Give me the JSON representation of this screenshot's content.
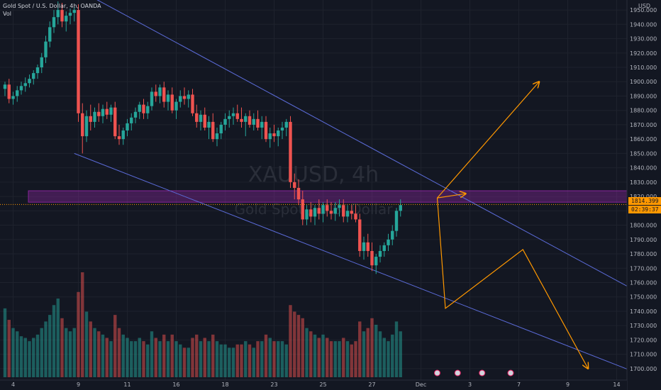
{
  "legend": {
    "symbol_line": "Gold Spot / U.S. Dollar, 4h, OANDA",
    "vol_label": "Vol"
  },
  "watermark": {
    "ticker": "XAUUSD, 4h",
    "name": "Gold Spot / U.S. Dollar"
  },
  "currency": "USD",
  "current_price": {
    "value": "1814.399",
    "countdown": "02:39:37"
  },
  "colors": {
    "background": "#131722",
    "up": "#26a69a",
    "down": "#ef5350",
    "trendline": "#5b6bd8",
    "zone": "#9c27b0",
    "arrows": "#ff9800"
  },
  "chart_data": {
    "type": "candlestick",
    "timeframe": "4h",
    "ylim": [
      1695,
      1953
    ],
    "y_ticks": [
      1700,
      1710,
      1720,
      1730,
      1740,
      1750,
      1760,
      1770,
      1780,
      1790,
      1800,
      1810,
      1820,
      1830,
      1840,
      1850,
      1860,
      1870,
      1880,
      1890,
      1900,
      1910,
      1920,
      1930,
      1940,
      1950
    ],
    "x_ticks": [
      {
        "label": "4",
        "bar": 2
      },
      {
        "label": "9",
        "bar": 18
      },
      {
        "label": "11",
        "bar": 30
      },
      {
        "label": "16",
        "bar": 42
      },
      {
        "label": "18",
        "bar": 54
      },
      {
        "label": "23",
        "bar": 66
      },
      {
        "label": "25",
        "bar": 78
      },
      {
        "label": "27",
        "bar": 90
      },
      {
        "label": "Dec",
        "bar": 102
      },
      {
        "label": "3",
        "bar": 114
      },
      {
        "label": "7",
        "bar": 126
      },
      {
        "label": "9",
        "bar": 138
      },
      {
        "label": "14",
        "bar": 150
      }
    ],
    "resistance_zone": [
      1816,
      1824
    ],
    "trendlines": [
      {
        "start": {
          "bar": 22,
          "price": 1958
        },
        "end": {
          "bar": 162,
          "price": 1743
        }
      },
      {
        "start": {
          "bar": 17,
          "price": 1850
        },
        "end": {
          "bar": 155,
          "price": 1697
        }
      }
    ],
    "projection_paths": [
      [
        {
          "bar": 106,
          "price": 1819
        },
        {
          "bar": 113,
          "price": 1822
        }
      ],
      [
        {
          "bar": 106,
          "price": 1819
        },
        {
          "bar": 131,
          "price": 1900
        }
      ],
      [
        {
          "bar": 106,
          "price": 1819
        },
        {
          "bar": 108,
          "price": 1742
        },
        {
          "bar": 127,
          "price": 1783
        },
        {
          "bar": 143,
          "price": 1700
        }
      ]
    ],
    "candles": [
      [
        1895,
        1900,
        1890,
        1898,
        42
      ],
      [
        1898,
        1902,
        1885,
        1888,
        35
      ],
      [
        1888,
        1893,
        1884,
        1890,
        30
      ],
      [
        1890,
        1897,
        1886,
        1894,
        28
      ],
      [
        1894,
        1900,
        1891,
        1897,
        25
      ],
      [
        1897,
        1903,
        1893,
        1899,
        24
      ],
      [
        1899,
        1905,
        1896,
        1902,
        22
      ],
      [
        1902,
        1908,
        1898,
        1906,
        24
      ],
      [
        1906,
        1912,
        1902,
        1910,
        26
      ],
      [
        1910,
        1920,
        1906,
        1917,
        30
      ],
      [
        1917,
        1932,
        1913,
        1928,
        34
      ],
      [
        1928,
        1942,
        1924,
        1938,
        38
      ],
      [
        1938,
        1950,
        1934,
        1945,
        44
      ],
      [
        1945,
        1956,
        1940,
        1950,
        48
      ],
      [
        1950,
        1955,
        1938,
        1942,
        36
      ],
      [
        1942,
        1949,
        1935,
        1946,
        30
      ],
      [
        1946,
        1951,
        1940,
        1948,
        28
      ],
      [
        1948,
        1952,
        1942,
        1950,
        30
      ],
      [
        1950,
        1954,
        1872,
        1878,
        52
      ],
      [
        1878,
        1885,
        1850,
        1862,
        64
      ],
      [
        1862,
        1880,
        1858,
        1876,
        40
      ],
      [
        1876,
        1884,
        1866,
        1872,
        34
      ],
      [
        1872,
        1882,
        1868,
        1879,
        30
      ],
      [
        1879,
        1885,
        1872,
        1876,
        28
      ],
      [
        1876,
        1884,
        1871,
        1881,
        26
      ],
      [
        1881,
        1886,
        1874,
        1877,
        24
      ],
      [
        1877,
        1884,
        1872,
        1882,
        22
      ],
      [
        1882,
        1886,
        1860,
        1862,
        38
      ],
      [
        1862,
        1870,
        1856,
        1860,
        30
      ],
      [
        1860,
        1868,
        1856,
        1866,
        26
      ],
      [
        1866,
        1874,
        1862,
        1871,
        24
      ],
      [
        1871,
        1878,
        1866,
        1875,
        22
      ],
      [
        1875,
        1882,
        1871,
        1879,
        22
      ],
      [
        1879,
        1886,
        1874,
        1884,
        24
      ],
      [
        1884,
        1888,
        1874,
        1878,
        22
      ],
      [
        1878,
        1886,
        1874,
        1883,
        20
      ],
      [
        1883,
        1896,
        1880,
        1893,
        28
      ],
      [
        1893,
        1898,
        1886,
        1890,
        24
      ],
      [
        1890,
        1898,
        1885,
        1896,
        22
      ],
      [
        1896,
        1900,
        1882,
        1886,
        26
      ],
      [
        1886,
        1894,
        1880,
        1891,
        22
      ],
      [
        1891,
        1896,
        1878,
        1880,
        26
      ],
      [
        1880,
        1888,
        1874,
        1886,
        22
      ],
      [
        1886,
        1894,
        1882,
        1890,
        20
      ],
      [
        1890,
        1896,
        1884,
        1888,
        18
      ],
      [
        1888,
        1894,
        1882,
        1891,
        18
      ],
      [
        1891,
        1895,
        1876,
        1878,
        24
      ],
      [
        1878,
        1884,
        1868,
        1872,
        26
      ],
      [
        1872,
        1880,
        1866,
        1877,
        22
      ],
      [
        1877,
        1882,
        1866,
        1868,
        24
      ],
      [
        1868,
        1876,
        1860,
        1872,
        22
      ],
      [
        1872,
        1878,
        1858,
        1860,
        26
      ],
      [
        1860,
        1868,
        1855,
        1864,
        22
      ],
      [
        1864,
        1872,
        1860,
        1870,
        20
      ],
      [
        1870,
        1878,
        1866,
        1874,
        20
      ],
      [
        1874,
        1880,
        1868,
        1876,
        18
      ],
      [
        1876,
        1882,
        1870,
        1878,
        18
      ],
      [
        1878,
        1884,
        1872,
        1874,
        20
      ],
      [
        1874,
        1882,
        1868,
        1872,
        20
      ],
      [
        1872,
        1878,
        1862,
        1876,
        22
      ],
      [
        1876,
        1880,
        1868,
        1870,
        20
      ],
      [
        1870,
        1878,
        1866,
        1874,
        18
      ],
      [
        1874,
        1880,
        1866,
        1868,
        22
      ],
      [
        1868,
        1876,
        1860,
        1872,
        22
      ],
      [
        1872,
        1876,
        1858,
        1860,
        26
      ],
      [
        1860,
        1868,
        1854,
        1864,
        24
      ],
      [
        1864,
        1870,
        1858,
        1862,
        22
      ],
      [
        1862,
        1868,
        1855,
        1866,
        22
      ],
      [
        1866,
        1872,
        1860,
        1868,
        22
      ],
      [
        1868,
        1874,
        1862,
        1872,
        20
      ],
      [
        1872,
        1876,
        1826,
        1830,
        44
      ],
      [
        1830,
        1836,
        1818,
        1826,
        40
      ],
      [
        1826,
        1832,
        1814,
        1818,
        38
      ],
      [
        1818,
        1824,
        1800,
        1804,
        36
      ],
      [
        1804,
        1814,
        1800,
        1811,
        30
      ],
      [
        1811,
        1816,
        1802,
        1806,
        28
      ],
      [
        1806,
        1814,
        1800,
        1812,
        26
      ],
      [
        1812,
        1818,
        1804,
        1808,
        24
      ],
      [
        1808,
        1816,
        1802,
        1814,
        26
      ],
      [
        1814,
        1818,
        1806,
        1810,
        24
      ],
      [
        1810,
        1816,
        1804,
        1808,
        22
      ],
      [
        1808,
        1816,
        1803,
        1812,
        22
      ],
      [
        1812,
        1818,
        1806,
        1814,
        22
      ],
      [
        1814,
        1818,
        1802,
        1806,
        24
      ],
      [
        1806,
        1814,
        1802,
        1810,
        22
      ],
      [
        1810,
        1814,
        1804,
        1808,
        20
      ],
      [
        1808,
        1814,
        1802,
        1804,
        22
      ],
      [
        1804,
        1808,
        1778,
        1782,
        34
      ],
      [
        1782,
        1792,
        1776,
        1788,
        28
      ],
      [
        1788,
        1794,
        1778,
        1782,
        30
      ],
      [
        1782,
        1788,
        1768,
        1772,
        36
      ],
      [
        1772,
        1780,
        1766,
        1778,
        32
      ],
      [
        1778,
        1786,
        1774,
        1782,
        28
      ],
      [
        1782,
        1788,
        1778,
        1786,
        24
      ],
      [
        1786,
        1794,
        1782,
        1790,
        22
      ],
      [
        1790,
        1800,
        1786,
        1796,
        26
      ],
      [
        1796,
        1812,
        1792,
        1810,
        34
      ],
      [
        1810,
        1818,
        1806,
        1814,
        28
      ]
    ]
  }
}
